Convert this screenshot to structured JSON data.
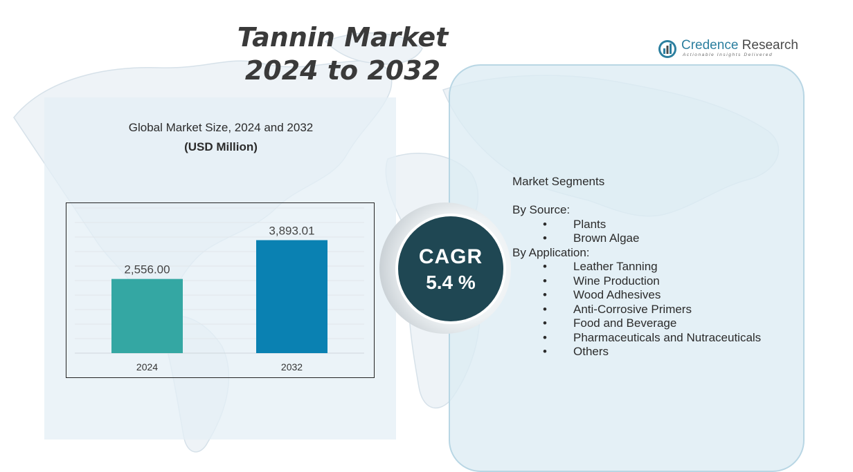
{
  "title": {
    "line1": "Tannin Market",
    "line2": "2024 to 2032"
  },
  "logo": {
    "name_part1": "Credence",
    "name_part2": "Research",
    "tagline": "Actionable Insights Delivered",
    "icon": "bar-chart-logo-icon"
  },
  "chart_data": {
    "type": "bar",
    "title": "Global Market Size,  2024 and 2032",
    "unit": "(USD Million)",
    "categories": [
      "2024",
      "2032"
    ],
    "values": [
      2556.0,
      3893.01
    ],
    "value_labels": [
      "2,556.00",
      "3,893.01"
    ],
    "ylim": [
      0,
      5000
    ],
    "grid": true,
    "colors": [
      "#34a7a3",
      "#0a81b2"
    ]
  },
  "cagr": {
    "label": "CAGR",
    "value": "5.4 %"
  },
  "segments": {
    "heading": "Market Segments",
    "groups": [
      {
        "title": "By Source:",
        "items": [
          "Plants",
          "Brown Algae"
        ]
      },
      {
        "title": "By Application:",
        "items": [
          "Leather Tanning",
          "Wine Production",
          "Wood Adhesives",
          "Anti-Corrosive Primers",
          "Food and Beverage",
          "Pharmaceuticals and Nutraceuticals",
          "Others"
        ]
      }
    ]
  },
  "colors": {
    "cagr_circle": "#1f4753",
    "logo_blue": "#2c7f9f",
    "panel_bg": "#e4eff6"
  }
}
